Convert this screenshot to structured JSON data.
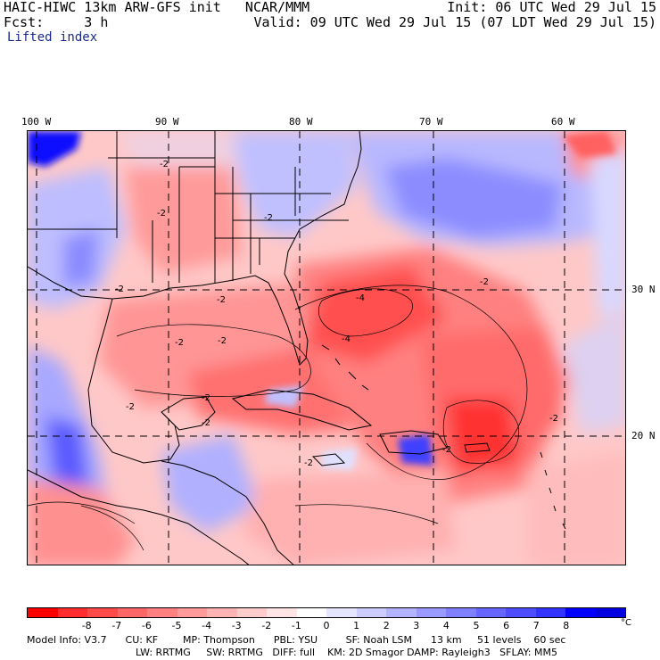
{
  "header": {
    "line1_left": "HAIC-HIWC 13km ARW-GFS init   NCAR/MMM",
    "line1_right": "Init: 06 UTC Wed 29 Jul 15",
    "line2_left": "Fcst:     3 h",
    "line2_right": "Valid: 09 UTC Wed 29 Jul 15 (07 LDT Wed 29 Jul 15)",
    "field": "Lifted index"
  },
  "longitude_labels": [
    "100 W",
    "90 W",
    "80 W",
    "70 W",
    "60 W"
  ],
  "latitude_labels": [
    "30 N",
    "20 N"
  ],
  "contour_labels": [
    "-2",
    "-2",
    "-2",
    "-2",
    "-2",
    "-2",
    "-2",
    "-4",
    "-2",
    "-2",
    "-2",
    "-2",
    "-4",
    "-2",
    "-2",
    "-2"
  ],
  "colorbar": {
    "colors": [
      "#ff0000",
      "#ff2d2d",
      "#ff4a4a",
      "#ff6666",
      "#ff8080",
      "#ff9a9a",
      "#ffb3b3",
      "#ffcccc",
      "#ffe5e5",
      "#ffffff",
      "#e5e5ff",
      "#ccccff",
      "#b3b3ff",
      "#9999ff",
      "#8080ff",
      "#6666ff",
      "#4d4dff",
      "#3333ff",
      "#0000ff",
      "#0000e0"
    ],
    "ticks": [
      "-8",
      "-7",
      "-6",
      "-5",
      "-4",
      "-3",
      "-2",
      "-1",
      "0",
      "1",
      "2",
      "3",
      "4",
      "5",
      "6",
      "7",
      "8"
    ],
    "unit": "°C"
  },
  "model_info": {
    "line1": "Model Info: V3.7      CU: KF        MP: Thompson      PBL: YSU         SF: Noah LSM      13 km     51 levels    60 sec",
    "line2": "LW: RRTMG     SW: RRTMG   DIFF: full    KM: 2D Smagor DAMP: Rayleigh3   SFLAY: MM5"
  }
}
